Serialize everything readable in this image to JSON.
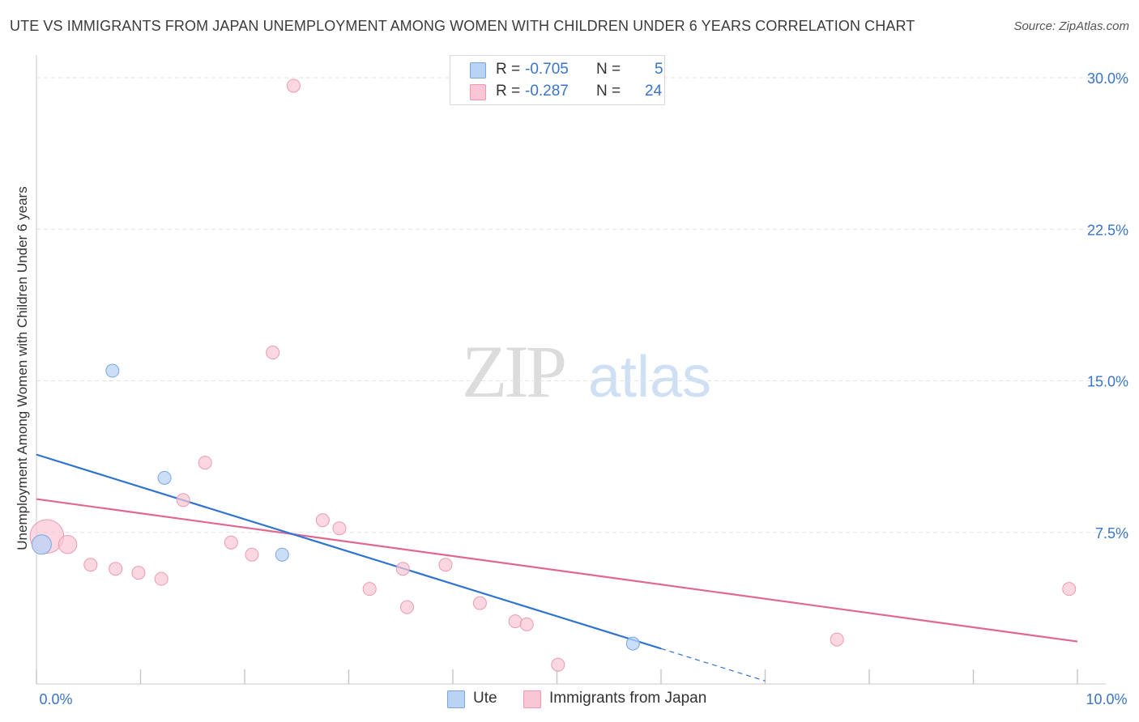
{
  "chart_data": {
    "type": "scatter",
    "title": "UTE VS IMMIGRANTS FROM JAPAN UNEMPLOYMENT AMONG WOMEN WITH CHILDREN UNDER 6 YEARS CORRELATION CHART",
    "source": "Source: ZipAtlas.com",
    "xlabel": "",
    "ylabel": "Unemployment Among Women with Children Under 6 years",
    "xlim": [
      0,
      10
    ],
    "ylim": [
      0,
      30
    ],
    "x_tick_labels": [
      {
        "value": 0,
        "label": "0.0%"
      },
      {
        "value": 10,
        "label": "10.0%"
      }
    ],
    "y_tick_labels": [
      {
        "value": 7.5,
        "label": "7.5%"
      },
      {
        "value": 15,
        "label": "15.0%"
      },
      {
        "value": 22.5,
        "label": "22.5%"
      },
      {
        "value": 30,
        "label": "30.0%"
      }
    ],
    "watermark": {
      "zip": "ZIP",
      "atlas": "atlas"
    },
    "colors": {
      "ute_fill": "#b9d3f5",
      "ute_stroke": "#7aa6e0",
      "ute_line": "#2f74d0",
      "japan_fill": "#f8c6d4",
      "japan_stroke": "#ec9ab2",
      "japan_line": "#e06890",
      "value_text": "#3a74c8"
    },
    "series": [
      {
        "name": "Ute",
        "r_label": "R =",
        "r_value": "-0.705",
        "n_label": "N =",
        "n_value": "5",
        "points": [
          {
            "x": 0.05,
            "y": 6.9,
            "size": 1.5
          },
          {
            "x": 0.73,
            "y": 15.5,
            "size": 1
          },
          {
            "x": 1.23,
            "y": 10.2,
            "size": 1
          },
          {
            "x": 2.36,
            "y": 6.4,
            "size": 1
          },
          {
            "x": 5.73,
            "y": 2.0,
            "size": 1
          }
        ],
        "trend": {
          "x0": 0.0,
          "y0": 11.35,
          "x1": 6.0,
          "y1": 1.75,
          "dash_to_x": 7.0
        }
      },
      {
        "name": "Immigrants from Japan",
        "r_label": "R =",
        "r_value": "-0.287",
        "n_label": "N =",
        "n_value": "24",
        "points": [
          {
            "x": 0.1,
            "y": 7.3,
            "size": 2.6
          },
          {
            "x": 0.3,
            "y": 6.9,
            "size": 1.4
          },
          {
            "x": 0.52,
            "y": 5.9,
            "size": 1
          },
          {
            "x": 0.76,
            "y": 5.7,
            "size": 1
          },
          {
            "x": 0.98,
            "y": 5.5,
            "size": 1
          },
          {
            "x": 1.2,
            "y": 5.2,
            "size": 1
          },
          {
            "x": 1.41,
            "y": 9.1,
            "size": 1
          },
          {
            "x": 1.62,
            "y": 10.95,
            "size": 1
          },
          {
            "x": 1.87,
            "y": 7.0,
            "size": 1
          },
          {
            "x": 2.07,
            "y": 6.4,
            "size": 1
          },
          {
            "x": 2.27,
            "y": 16.4,
            "size": 1
          },
          {
            "x": 2.47,
            "y": 29.6,
            "size": 1
          },
          {
            "x": 2.75,
            "y": 8.1,
            "size": 1
          },
          {
            "x": 2.91,
            "y": 7.7,
            "size": 1
          },
          {
            "x": 3.2,
            "y": 4.7,
            "size": 1
          },
          {
            "x": 3.52,
            "y": 5.7,
            "size": 1
          },
          {
            "x": 3.56,
            "y": 3.8,
            "size": 1
          },
          {
            "x": 3.93,
            "y": 5.9,
            "size": 1
          },
          {
            "x": 4.26,
            "y": 4.0,
            "size": 1
          },
          {
            "x": 4.6,
            "y": 3.1,
            "size": 1
          },
          {
            "x": 4.71,
            "y": 2.95,
            "size": 1
          },
          {
            "x": 5.01,
            "y": 0.95,
            "size": 1
          },
          {
            "x": 7.69,
            "y": 2.2,
            "size": 1
          },
          {
            "x": 9.92,
            "y": 4.7,
            "size": 1
          }
        ],
        "trend": {
          "x0": 0.0,
          "y0": 9.15,
          "x1": 10.0,
          "y1": 2.1
        }
      }
    ]
  }
}
